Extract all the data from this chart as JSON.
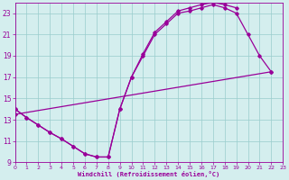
{
  "bg_color": "#d4eeee",
  "line_color": "#990099",
  "tick_color": "#990099",
  "grid_color": "#99cccc",
  "xlim": [
    0,
    23
  ],
  "ylim": [
    9,
    24
  ],
  "yticks": [
    9,
    11,
    13,
    15,
    17,
    19,
    21,
    23
  ],
  "xticks": [
    0,
    1,
    2,
    3,
    4,
    5,
    6,
    7,
    8,
    9,
    10,
    11,
    12,
    13,
    14,
    15,
    16,
    17,
    18,
    19,
    20,
    21,
    22,
    23
  ],
  "xlabel": "Windchill (Refroidissement éolien,°C)",
  "line1_x": [
    0,
    1,
    2,
    3,
    4,
    5,
    6,
    7,
    8,
    9,
    10,
    11,
    12,
    13,
    14,
    15,
    16,
    17,
    18,
    19
  ],
  "line1_y": [
    14.0,
    13.2,
    12.5,
    11.8,
    11.2,
    10.5,
    9.8,
    9.5,
    9.5,
    14.0,
    17.0,
    19.2,
    21.2,
    22.2,
    23.2,
    23.5,
    23.8,
    24.0,
    23.8,
    23.5
  ],
  "line2_x": [
    0,
    1,
    2,
    3,
    4,
    5,
    6,
    7,
    8,
    9,
    10,
    11,
    12,
    13,
    14,
    15,
    16,
    17,
    18,
    19,
    20,
    21,
    22
  ],
  "line2_y": [
    14.0,
    13.2,
    12.5,
    11.8,
    11.2,
    10.5,
    9.8,
    9.5,
    9.5,
    14.0,
    17.0,
    19.0,
    21.0,
    22.0,
    23.0,
    23.2,
    23.5,
    23.8,
    23.5,
    23.0,
    21.0,
    19.0,
    17.5
  ],
  "line3_x": [
    0,
    22
  ],
  "line3_y": [
    13.5,
    17.5
  ]
}
